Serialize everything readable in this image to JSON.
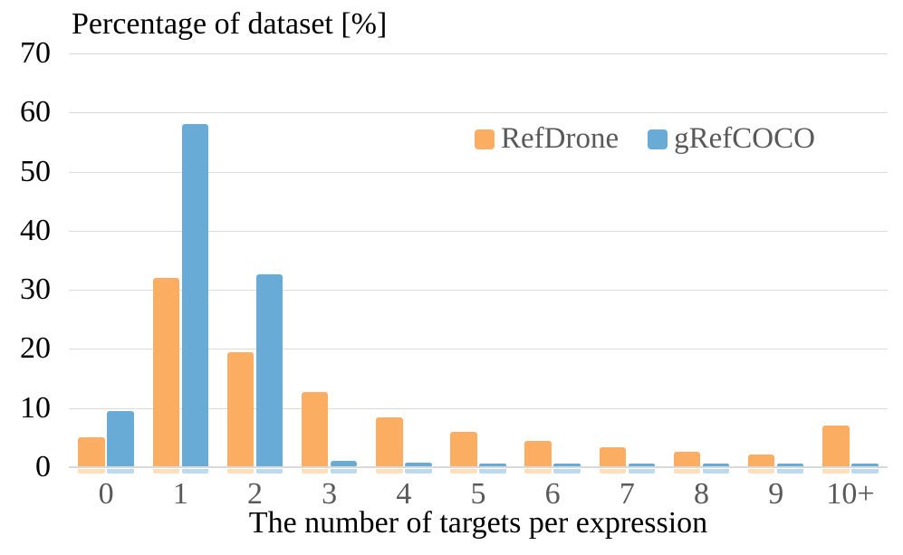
{
  "chart_data": {
    "type": "bar",
    "title": "Percentage of dataset [%]",
    "xlabel": "The number of targets per expression",
    "ylabel": "Percentage of dataset [%]",
    "categories": [
      "0",
      "1",
      "2",
      "3",
      "4",
      "5",
      "6",
      "7",
      "8",
      "9",
      "10+"
    ],
    "series": [
      {
        "name": "RefDrone",
        "color": "#FBAE62",
        "faint_color": "#FEDFBC",
        "values": [
          5.0,
          32.0,
          19.4,
          12.7,
          8.4,
          6.0,
          4.5,
          3.3,
          2.6,
          2.2,
          7.0
        ]
      },
      {
        "name": "gRefCOCO",
        "color": "#68ABD7",
        "faint_color": "#BCD9EE",
        "values": [
          9.5,
          58.0,
          32.7,
          1.0,
          0.7,
          0.6,
          0.6,
          0.6,
          0.6,
          0.6,
          0.6
        ]
      }
    ],
    "y_ticks": [
      0,
      10,
      20,
      30,
      40,
      50,
      60,
      70
    ],
    "ylim": [
      0,
      70
    ],
    "grid": true,
    "legend_position": "inside-top-center"
  },
  "colors": {
    "gridline": "#DCDCDC",
    "zero_axis_line": "#D9D9D9",
    "y_tick_text": "#000000",
    "x_tick_text": "#595959",
    "legend_text": "#595959",
    "title_text": "#000000",
    "background": "#FFFFFF"
  }
}
